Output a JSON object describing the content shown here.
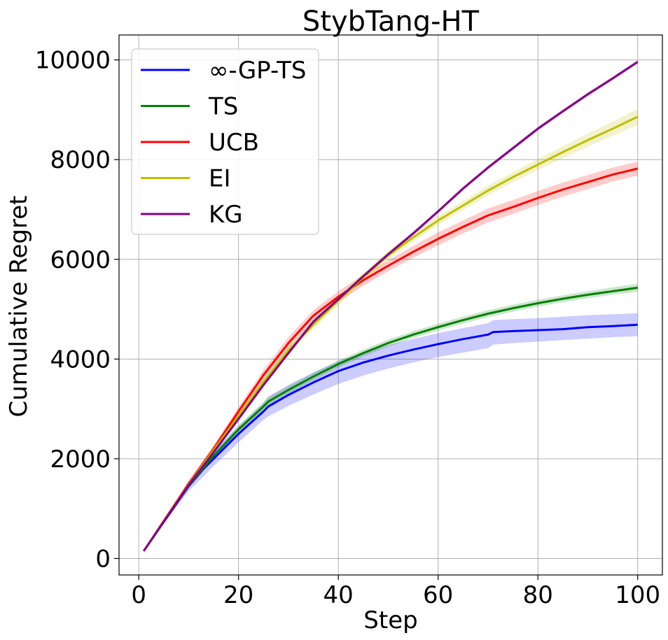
{
  "chart_data": {
    "type": "line",
    "title": "StybTang-HT",
    "xlabel": "Step",
    "ylabel": "Cumulative Regret",
    "xlim": [
      -3.95,
      104.95
    ],
    "ylim": [
      -330,
      10500
    ],
    "xticks": [
      0,
      20,
      40,
      60,
      80,
      100
    ],
    "yticks": [
      0,
      2000,
      4000,
      6000,
      8000,
      10000
    ],
    "grid": true,
    "legend_position": "top-left",
    "series": [
      {
        "name": "∞-GP-TS",
        "color": "#0000ff",
        "x": [
          1,
          5,
          10,
          13,
          15,
          20,
          25,
          26,
          30,
          35,
          40,
          45,
          50,
          55,
          60,
          65,
          70,
          71,
          75,
          80,
          85,
          90,
          95,
          100
        ],
        "y": [
          150,
          730,
          1450,
          1800,
          2000,
          2500,
          2950,
          3050,
          3280,
          3530,
          3760,
          3930,
          4070,
          4190,
          4300,
          4400,
          4490,
          4540,
          4560,
          4580,
          4600,
          4640,
          4660,
          4690
        ],
        "lower": [
          150,
          700,
          1350,
          1650,
          1850,
          2330,
          2780,
          2850,
          3060,
          3290,
          3500,
          3670,
          3810,
          3930,
          4040,
          4130,
          4220,
          4290,
          4320,
          4350,
          4380,
          4410,
          4440,
          4460
        ],
        "upper": [
          150,
          760,
          1550,
          1900,
          2150,
          2650,
          3120,
          3250,
          3480,
          3730,
          3960,
          4130,
          4280,
          4400,
          4520,
          4620,
          4720,
          4780,
          4800,
          4820,
          4850,
          4880,
          4900,
          4920
        ]
      },
      {
        "name": "TS",
        "color": "#008000",
        "x": [
          1,
          5,
          10,
          15,
          20,
          25,
          26,
          30,
          35,
          40,
          45,
          50,
          55,
          60,
          65,
          70,
          75,
          80,
          85,
          90,
          95,
          100
        ],
        "y": [
          150,
          740,
          1460,
          2060,
          2590,
          3050,
          3150,
          3380,
          3650,
          3900,
          4120,
          4320,
          4490,
          4640,
          4780,
          4910,
          5020,
          5120,
          5210,
          5290,
          5360,
          5430
        ],
        "lower": [
          150,
          720,
          1410,
          1990,
          2510,
          2960,
          3060,
          3300,
          3570,
          3830,
          4050,
          4250,
          4420,
          4570,
          4710,
          4840,
          4950,
          5050,
          5140,
          5220,
          5290,
          5350
        ],
        "upper": [
          150,
          760,
          1510,
          2130,
          2670,
          3140,
          3240,
          3460,
          3730,
          3970,
          4190,
          4390,
          4560,
          4710,
          4850,
          4980,
          5090,
          5190,
          5280,
          5360,
          5440,
          5510
        ]
      },
      {
        "name": "UCB",
        "color": "#ff0000",
        "x": [
          1,
          5,
          10,
          15,
          20,
          25,
          30,
          35,
          40,
          45,
          50,
          55,
          60,
          65,
          70,
          75,
          80,
          85,
          90,
          95,
          100
        ],
        "y": [
          150,
          750,
          1500,
          2200,
          2950,
          3680,
          4320,
          4870,
          5250,
          5580,
          5870,
          6150,
          6410,
          6650,
          6880,
          7050,
          7230,
          7400,
          7550,
          7700,
          7820
        ],
        "lower": [
          150,
          730,
          1440,
          2130,
          2860,
          3580,
          4200,
          4760,
          5140,
          5470,
          5760,
          6030,
          6280,
          6520,
          6740,
          6910,
          7090,
          7260,
          7410,
          7560,
          7680
        ],
        "upper": [
          150,
          770,
          1560,
          2270,
          3040,
          3780,
          4440,
          4980,
          5360,
          5690,
          5980,
          6270,
          6540,
          6780,
          7020,
          7190,
          7370,
          7540,
          7690,
          7840,
          7960
        ]
      },
      {
        "name": "EI",
        "color": "#bfbf00",
        "x": [
          1,
          5,
          10,
          15,
          20,
          25,
          30,
          35,
          40,
          45,
          50,
          55,
          60,
          65,
          70,
          75,
          80,
          85,
          90,
          95,
          100
        ],
        "y": [
          150,
          740,
          1480,
          2170,
          2860,
          3540,
          4170,
          4690,
          5170,
          5640,
          6080,
          6440,
          6780,
          7080,
          7380,
          7650,
          7900,
          8150,
          8390,
          8620,
          8860
        ],
        "lower": [
          150,
          720,
          1430,
          2100,
          2780,
          3460,
          4080,
          4600,
          5080,
          5550,
          5990,
          6350,
          6690,
          6990,
          7280,
          7550,
          7790,
          8030,
          8260,
          8480,
          8700
        ],
        "upper": [
          150,
          760,
          1530,
          2240,
          2940,
          3620,
          4260,
          4780,
          5260,
          5730,
          6170,
          6530,
          6870,
          7170,
          7480,
          7750,
          8010,
          8270,
          8520,
          8760,
          9020
        ]
      },
      {
        "name": "KG",
        "color": "#800080",
        "x": [
          1,
          5,
          10,
          15,
          20,
          25,
          30,
          35,
          40,
          45,
          50,
          55,
          60,
          65,
          70,
          75,
          80,
          85,
          90,
          95,
          100
        ],
        "y": [
          150,
          740,
          1470,
          2130,
          2800,
          3480,
          4120,
          4750,
          5200,
          5660,
          6100,
          6520,
          6960,
          7420,
          7840,
          8230,
          8620,
          8970,
          9310,
          9630,
          9960
        ],
        "lower": [
          150,
          730,
          1450,
          2100,
          2760,
          3440,
          4080,
          4710,
          5160,
          5620,
          6060,
          6480,
          6920,
          7380,
          7800,
          8190,
          8580,
          8930,
          9270,
          9590,
          9920
        ],
        "upper": [
          150,
          750,
          1490,
          2160,
          2840,
          3520,
          4160,
          4790,
          5240,
          5700,
          6140,
          6560,
          7000,
          7460,
          7880,
          8270,
          8660,
          9010,
          9350,
          9670,
          10000
        ]
      }
    ]
  }
}
